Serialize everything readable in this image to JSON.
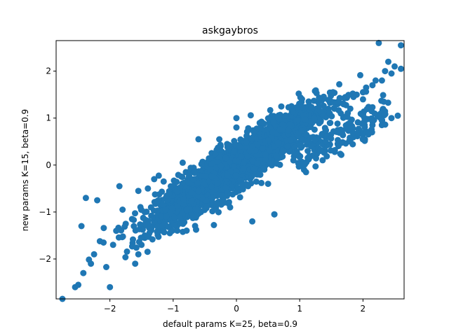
{
  "chart_data": {
    "type": "scatter",
    "title": "askgaybros",
    "xlabel": "default params K=25, beta=0.9",
    "ylabel": "new params K=15, beta=0.9",
    "xlim": [
      -2.85,
      2.65
    ],
    "ylim": [
      -2.85,
      2.65
    ],
    "xticks": [
      -2,
      -1,
      0,
      1,
      2
    ],
    "yticks": [
      -2,
      -1,
      0,
      1,
      2
    ],
    "xtick_labels": [
      "−2",
      "−1",
      "0",
      "1",
      "2"
    ],
    "ytick_labels": [
      "−2",
      "−1",
      "0",
      "1",
      "2"
    ],
    "grid": false,
    "marker_color": "#1f77b4",
    "series": [
      {
        "points_note_excluded": true,
        "x": [
          -2.75,
          -2.55,
          -2.5,
          -2.42,
          -2.38,
          -2.3,
          -2.25,
          -2.0,
          -1.95,
          -1.9,
          -1.6,
          -1.55,
          -1.5,
          -1.45,
          -1.45,
          -1.2,
          -1.1,
          -0.95,
          -0.6,
          -0.45,
          0.0,
          0.0,
          0.5,
          0.6,
          1.1,
          1.65,
          1.8,
          2.0,
          2.25,
          2.4,
          2.6,
          2.6,
          -1.8,
          -2.1,
          -2.45,
          -1.75,
          -1.65,
          -1.45,
          -1.35,
          -1.2,
          -1.05,
          -0.9,
          -0.75,
          -0.6,
          -0.45,
          -0.3,
          -0.15,
          0.05,
          0.2,
          0.35,
          0.5,
          0.65,
          0.8,
          0.95,
          1.1,
          1.25,
          1.4,
          1.55,
          1.7,
          1.85,
          2.0,
          2.15,
          2.3,
          2.45,
          0.9,
          1.2,
          1.4,
          1.6,
          1.8,
          2.0,
          2.15,
          2.3,
          2.45,
          2.55,
          -0.1,
          -0.55,
          0.25,
          0.6,
          -1.4,
          -1.15,
          -0.8,
          -0.35,
          0.15,
          0.45,
          0.75,
          1.05,
          1.3,
          1.45,
          1.6,
          1.75,
          1.9,
          2.05,
          2.2,
          2.35,
          2.5,
          -2.2,
          -1.85,
          -1.55,
          -1.3,
          -0.85,
          -0.25,
          0.3,
          0.85,
          1.5
        ],
        "y": [
          -2.85,
          -2.6,
          -2.55,
          -2.3,
          -0.7,
          -2.1,
          -1.9,
          -2.6,
          -1.7,
          -1.4,
          -2.1,
          -1.9,
          -1.7,
          -1.5,
          -1.55,
          -1.35,
          -1.3,
          -1.1,
          0.55,
          -0.8,
          1.0,
          0.8,
          -0.4,
          -1.05,
          -0.15,
          1.1,
          1.2,
          1.4,
          2.6,
          2.2,
          2.55,
          2.05,
          -0.95,
          -1.65,
          -1.3,
          -1.25,
          -1.15,
          -1.0,
          -0.9,
          -0.85,
          -0.7,
          -0.6,
          -0.5,
          -0.4,
          -0.3,
          -0.2,
          -0.05,
          0.05,
          0.2,
          0.3,
          0.4,
          0.5,
          0.6,
          0.7,
          0.85,
          0.95,
          1.1,
          1.2,
          1.3,
          1.45,
          1.55,
          1.7,
          1.8,
          1.95,
          0.1,
          0.2,
          0.3,
          0.45,
          0.5,
          0.65,
          0.85,
          0.95,
          1.0,
          1.05,
          -0.9,
          -0.85,
          -1.2,
          -1.05,
          -0.5,
          -0.35,
          -0.15,
          0.1,
          0.25,
          0.45,
          0.65,
          0.85,
          1.0,
          1.15,
          1.3,
          1.45,
          1.5,
          1.65,
          1.8,
          2.0,
          2.1,
          -0.75,
          -0.45,
          -0.55,
          -0.3,
          0.05,
          0.4,
          0.7,
          1.0,
          1.35
        ]
      }
    ]
  }
}
